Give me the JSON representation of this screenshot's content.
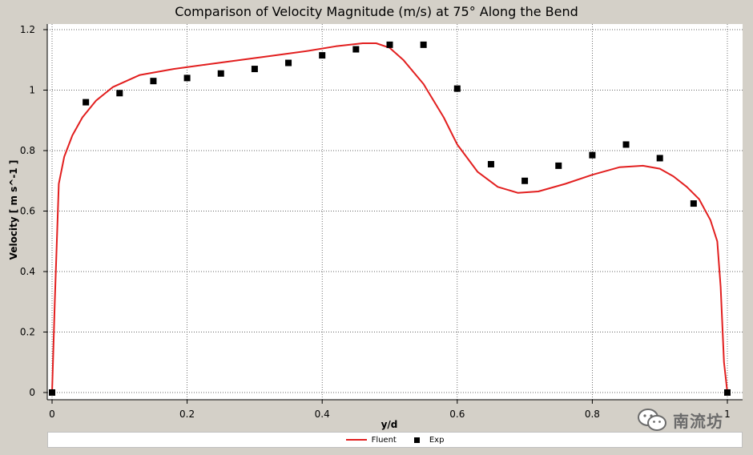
{
  "title": "Comparison of Velocity Magnitude (m/s) at 75° Along the Bend",
  "chart_data": {
    "type": "line",
    "title": "Comparison of Velocity Magnitude (m/s) at 75° Along the Bend",
    "xlabel": "y/d",
    "ylabel": "Velocity [ m s^-1 ]",
    "xlim": [
      0,
      1
    ],
    "ylim": [
      0,
      1.2
    ],
    "xticks": [
      "0",
      "0.2",
      "0.4",
      "0.6",
      "0.8",
      "1"
    ],
    "yticks": [
      "0",
      "0.2",
      "0.4",
      "0.6",
      "0.8",
      "1",
      "1.2"
    ],
    "grid": true,
    "legend_position": "bottom",
    "series": [
      {
        "name": "Fluent",
        "kind": "line",
        "color": "#e21f1f",
        "x": [
          0,
          0.004,
          0.01,
          0.018,
          0.03,
          0.045,
          0.065,
          0.09,
          0.13,
          0.18,
          0.23,
          0.28,
          0.33,
          0.38,
          0.42,
          0.46,
          0.48,
          0.5,
          0.52,
          0.55,
          0.58,
          0.6,
          0.63,
          0.66,
          0.69,
          0.72,
          0.76,
          0.8,
          0.84,
          0.875,
          0.9,
          0.92,
          0.94,
          0.958,
          0.975,
          0.985,
          0.99,
          0.995,
          1.0
        ],
        "y": [
          0,
          0.3,
          0.69,
          0.78,
          0.85,
          0.91,
          0.965,
          1.01,
          1.05,
          1.07,
          1.085,
          1.1,
          1.115,
          1.13,
          1.145,
          1.155,
          1.155,
          1.14,
          1.1,
          1.02,
          0.91,
          0.82,
          0.73,
          0.68,
          0.66,
          0.665,
          0.69,
          0.72,
          0.745,
          0.75,
          0.74,
          0.715,
          0.68,
          0.64,
          0.57,
          0.5,
          0.35,
          0.1,
          0
        ]
      },
      {
        "name": "Exp",
        "kind": "scatter",
        "color": "#000000",
        "x": [
          0,
          0.05,
          0.1,
          0.15,
          0.2,
          0.25,
          0.3,
          0.35,
          0.4,
          0.45,
          0.5,
          0.55,
          0.6,
          0.65,
          0.7,
          0.75,
          0.8,
          0.85,
          0.9,
          0.95,
          1.0
        ],
        "y": [
          0,
          0.96,
          0.99,
          1.03,
          1.04,
          1.055,
          1.07,
          1.09,
          1.115,
          1.135,
          1.15,
          1.15,
          1.005,
          0.755,
          0.7,
          0.75,
          0.785,
          0.82,
          0.775,
          0.625,
          0
        ]
      }
    ]
  },
  "watermark": {
    "text": "南流坊",
    "icon": "wechat-icon"
  }
}
